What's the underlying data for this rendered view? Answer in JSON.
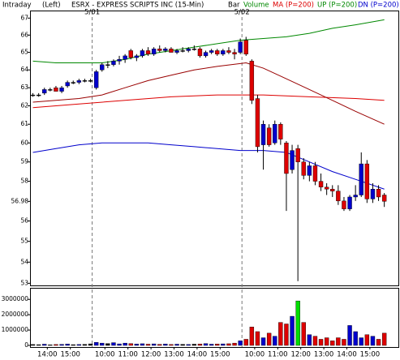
{
  "chart_data": {
    "type": "candlestick",
    "header": {
      "period": "Intraday",
      "side": "(Left)",
      "title": "ESRX - EXPRESS SCRIPTS INC (15-Min)",
      "bar_label": "Bar"
    },
    "log_scale": true,
    "ylim": [
      52.9,
      67.4
    ],
    "yticks": [
      67,
      66,
      65,
      64,
      63,
      62,
      61,
      60,
      59,
      58,
      56.98,
      56,
      55,
      54,
      53
    ],
    "xlim": [
      0,
      62
    ],
    "xticks": [
      {
        "value": 3,
        "label": "14:00"
      },
      {
        "value": 7,
        "label": "15:00"
      },
      {
        "value": 13,
        "label": "10:00"
      },
      {
        "value": 17,
        "label": "11:00"
      },
      {
        "value": 21,
        "label": "12:00"
      },
      {
        "value": 25,
        "label": "13:00"
      },
      {
        "value": 29,
        "label": "14:00"
      },
      {
        "value": 33,
        "label": "15:00"
      },
      {
        "value": 39,
        "label": "10:00"
      },
      {
        "value": 43,
        "label": "11:00"
      },
      {
        "value": 47,
        "label": "12:00"
      },
      {
        "value": 51,
        "label": "13:00"
      },
      {
        "value": 55,
        "label": "14:00"
      },
      {
        "value": 59,
        "label": "15:00"
      }
    ],
    "day_breaks": [
      {
        "text": "5/01",
        "x": 11
      },
      {
        "text": "5/02",
        "x": 37
      }
    ],
    "up_color": "#0000cc",
    "down_color": "#dd0000",
    "flat_color": "#000000",
    "open": [
      62.6,
      62.6,
      62.7,
      62.9,
      63.0,
      62.8,
      63.1,
      63.3,
      63.3,
      63.4,
      63.4,
      63.0,
      64.0,
      64.3,
      64.3,
      64.5,
      64.6,
      65.1,
      64.7,
      64.8,
      65.1,
      64.9,
      65.2,
      65.1,
      65.2,
      65.0,
      65.1,
      65.1,
      65.2,
      65.2,
      64.8,
      65.0,
      65.1,
      64.9,
      65.1,
      65.0,
      65.0,
      65.7,
      64.5,
      62.4,
      59.9,
      60.8,
      60.0,
      61.0,
      60.0,
      58.6,
      59.7,
      59.0,
      58.3,
      58.8,
      58.0,
      57.7,
      57.6,
      57.5,
      57.0,
      56.6,
      57.2,
      57.3,
      58.9,
      57.1,
      57.6,
      57.3
    ],
    "high": [
      62.7,
      62.7,
      63.0,
      63.0,
      63.1,
      63.1,
      63.4,
      63.4,
      63.5,
      63.5,
      63.5,
      64.0,
      64.4,
      64.5,
      64.6,
      64.8,
      64.9,
      65.2,
      64.9,
      65.2,
      65.3,
      65.3,
      65.4,
      65.3,
      65.3,
      65.2,
      65.3,
      65.3,
      65.4,
      65.3,
      65.1,
      65.2,
      65.2,
      65.2,
      65.3,
      65.2,
      65.8,
      65.9,
      64.6,
      62.6,
      61.2,
      61.0,
      61.2,
      61.1,
      60.1,
      59.9,
      59.9,
      59.2,
      59.0,
      59.0,
      58.4,
      57.9,
      57.8,
      57.8,
      57.2,
      57.3,
      57.8,
      59.5,
      59.1,
      57.9,
      57.8,
      57.4
    ],
    "low": [
      62.5,
      62.5,
      62.6,
      62.8,
      62.8,
      62.7,
      63.0,
      63.2,
      63.2,
      63.3,
      63.3,
      62.9,
      63.9,
      64.1,
      64.2,
      64.3,
      64.4,
      64.6,
      64.5,
      64.7,
      64.8,
      64.8,
      65.0,
      65.0,
      65.0,
      64.9,
      65.0,
      65.0,
      65.1,
      64.7,
      64.7,
      64.9,
      64.8,
      64.8,
      64.9,
      64.6,
      64.9,
      64.8,
      62.1,
      59.5,
      58.6,
      59.8,
      59.9,
      59.9,
      56.5,
      58.4,
      53.1,
      58.1,
      58.0,
      57.8,
      57.5,
      57.3,
      57.2,
      56.8,
      56.5,
      56.5,
      57.0,
      57.2,
      56.9,
      56.9,
      57.0,
      56.7
    ],
    "close": [
      62.6,
      62.6,
      62.9,
      62.9,
      62.8,
      63.0,
      63.3,
      63.3,
      63.4,
      63.4,
      63.4,
      63.9,
      64.3,
      64.3,
      64.5,
      64.6,
      64.8,
      64.7,
      64.8,
      65.1,
      64.9,
      65.2,
      65.1,
      65.2,
      65.0,
      65.1,
      65.1,
      65.2,
      65.2,
      64.8,
      65.0,
      65.1,
      64.9,
      65.1,
      65.0,
      64.9,
      65.6,
      64.9,
      62.3,
      59.8,
      61.0,
      59.9,
      61.0,
      60.2,
      58.4,
      59.6,
      59.0,
      58.3,
      58.8,
      58.0,
      57.7,
      57.6,
      57.5,
      57.0,
      56.6,
      57.2,
      57.3,
      58.9,
      57.1,
      57.6,
      57.2,
      56.98
    ],
    "series": [
      {
        "name": "UP (P=200)",
        "color": "#008800",
        "x": [
          0,
          4,
          8,
          12,
          16,
          20,
          24,
          28,
          32,
          36,
          40,
          44,
          48,
          52,
          56,
          61
        ],
        "values": [
          64.5,
          64.4,
          64.4,
          64.4,
          64.6,
          64.9,
          65.1,
          65.3,
          65.5,
          65.7,
          65.8,
          65.9,
          66.1,
          66.4,
          66.6,
          66.9
        ]
      },
      {
        "name": "MA (P=200)",
        "color": "#dd0000",
        "x": [
          0,
          8,
          16,
          24,
          32,
          40,
          48,
          56,
          61
        ],
        "values": [
          61.9,
          62.1,
          62.3,
          62.5,
          62.6,
          62.6,
          62.5,
          62.4,
          62.3
        ]
      },
      {
        "color": "#990000",
        "x": [
          0,
          8,
          12,
          16,
          20,
          24,
          28,
          32,
          37,
          40,
          44,
          48,
          52,
          56,
          61
        ],
        "values": [
          62.2,
          62.4,
          62.6,
          63.0,
          63.4,
          63.7,
          64.0,
          64.2,
          64.4,
          64.1,
          63.5,
          62.9,
          62.3,
          61.7,
          61.0
        ]
      },
      {
        "name": "DN (P=200)",
        "color": "#0000cc",
        "x": [
          0,
          4,
          8,
          12,
          16,
          20,
          24,
          28,
          32,
          36,
          40,
          44,
          48,
          52,
          56,
          61
        ],
        "values": [
          59.5,
          59.7,
          59.9,
          60.0,
          60.0,
          60.0,
          59.9,
          59.8,
          59.7,
          59.6,
          59.6,
          59.5,
          59.0,
          58.5,
          58.1,
          57.6
        ]
      }
    ],
    "volume": {
      "name": "Volume",
      "color": "#008800",
      "max_color": "#00dd00",
      "ylim": [
        0,
        3700000
      ],
      "yticks": [
        3000000,
        2000000,
        1000000,
        0
      ],
      "values": [
        60000,
        50000,
        80000,
        40000,
        60000,
        70000,
        90000,
        50000,
        60000,
        70000,
        100000,
        200000,
        150000,
        120000,
        180000,
        100000,
        150000,
        120000,
        90000,
        110000,
        80000,
        100000,
        70000,
        90000,
        60000,
        80000,
        70000,
        60000,
        80000,
        90000,
        120000,
        80000,
        90000,
        100000,
        110000,
        150000,
        300000,
        400000,
        1200000,
        900000,
        500000,
        800000,
        600000,
        1500000,
        1400000,
        1900000,
        2900000,
        1500000,
        700000,
        600000,
        400000,
        500000,
        300000,
        500000,
        400000,
        1300000,
        900000,
        500000,
        700000,
        600000,
        400000,
        800000
      ]
    }
  }
}
